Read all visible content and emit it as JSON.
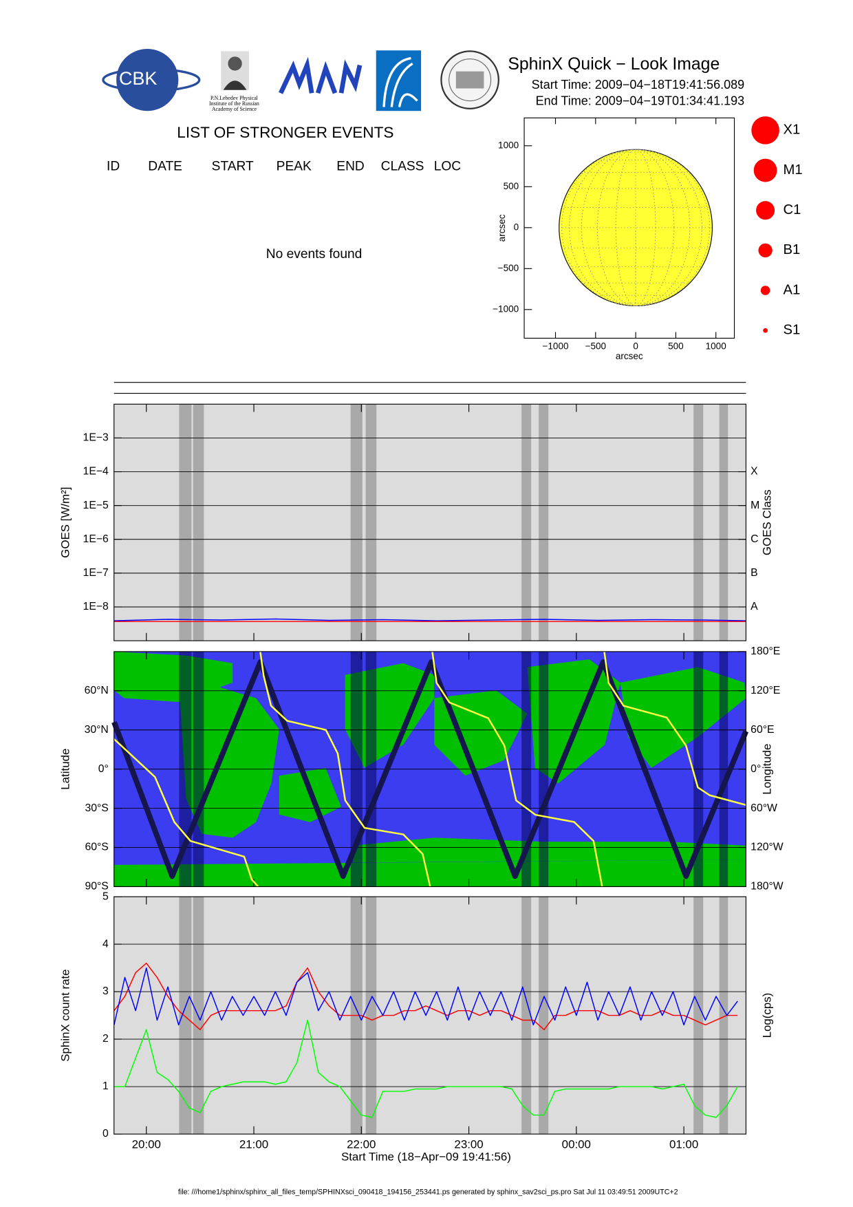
{
  "header": {
    "title": "SphinX Quick − Look Image",
    "start_time": "Start Time: 2009−04−18T19:41:56.089",
    "end_time": "End Time: 2009−04−19T01:34:41.193",
    "logos": {
      "cbk": "CBK",
      "lebedev": [
        "P.N.Lebedev Physical",
        "Institute of the Russian",
        "Academy of Science"
      ]
    }
  },
  "events": {
    "title": "LIST OF STRONGER EVENTS",
    "columns": [
      "ID",
      "DATE",
      "START",
      "PEAK",
      "END",
      "CLASS",
      "LOC"
    ],
    "message": "No events found"
  },
  "flare_legend": {
    "classes": [
      "X1",
      "M1",
      "C1",
      "B1",
      "A1",
      "S1"
    ],
    "color": "#ff0000"
  },
  "shaded_intervals": [
    [
      20.305,
      20.42
    ],
    [
      20.435,
      20.535
    ],
    [
      21.9,
      22.01
    ],
    [
      22.04,
      22.14
    ],
    [
      23.49,
      23.58
    ],
    [
      23.65,
      23.74
    ],
    [
      25.09,
      25.18
    ],
    [
      25.33,
      25.41
    ]
  ],
  "footer": "file: ///home1/sphinx/sphinx_all_files_temp/SPHINXsci_090418_194156_253441.ps generated by sphinx_sav2sci_ps.pro Sat Jul 11 03:49:51 2009UTC+2",
  "chart_data": [
    {
      "type": "disk",
      "xlabel": "arcsec",
      "ylabel": "arcsec",
      "xlim": [
        -1390,
        1230
      ],
      "ylim": [
        -1350,
        1340
      ],
      "radius": 955,
      "color": "#ffff33",
      "grid": true,
      "xticks": [
        {
          "value": -1000,
          "label": "−1000"
        },
        {
          "value": -500,
          "label": "−500"
        },
        0,
        500,
        1000
      ],
      "yticks": [
        {
          "value": -1000,
          "label": "−1000"
        },
        {
          "value": -500,
          "label": "−500"
        },
        0,
        500,
        1000
      ]
    },
    {
      "type": "line",
      "ylabel": "GOES [W/m²]",
      "y2label": "GOES Class",
      "log": true,
      "grid": true,
      "band_color": "#a0a0a0",
      "background": "#dcdcdc",
      "xlim": [
        19.699,
        25.578
      ],
      "ylim": [
        1e-09,
        0.01
      ],
      "y2lim": [
        1e-09,
        0.01
      ],
      "yticks": [
        {
          "value": 1e-08,
          "label": "1E−8"
        },
        {
          "value": 1e-07,
          "label": "1E−7"
        },
        {
          "value": 1e-06,
          "label": "1E−6"
        },
        {
          "value": 1e-05,
          "label": "1E−5"
        },
        {
          "value": 0.0001,
          "label": "1E−4"
        },
        {
          "value": 0.001,
          "label": "1E−3"
        }
      ],
      "y2ticks": [
        {
          "value": 1e-08,
          "label": "A"
        },
        {
          "value": 1e-07,
          "label": "B"
        },
        {
          "value": 1e-06,
          "label": "C"
        },
        {
          "value": 1e-05,
          "label": "M"
        },
        {
          "value": 0.0001,
          "label": "X"
        }
      ],
      "x": [
        19.7,
        20.2,
        20.7,
        21.2,
        21.7,
        22.2,
        22.7,
        23.2,
        23.7,
        24.2,
        24.7,
        25.2,
        25.578
      ],
      "series": [
        {
          "color": "#0000ff",
          "values": [
            3.9e-09,
            4.3e-09,
            4.1e-09,
            4.4e-09,
            4e-09,
            4.2e-09,
            3.9e-09,
            4.1e-09,
            4.3e-09,
            4e-09,
            4.2e-09,
            4.1e-09,
            3.9e-09
          ]
        },
        {
          "color": "#ff0000",
          "values": [
            3.7e-09,
            3.7e-09,
            3.7e-09,
            3.7e-09,
            3.7e-09,
            3.7e-09,
            3.7e-09,
            3.7e-09,
            3.7e-09,
            3.7e-09,
            3.7e-09,
            3.7e-09,
            3.7e-09
          ]
        }
      ]
    },
    {
      "type": "map",
      "ylabel": "Latitude",
      "y2label": "Longitude",
      "grid": true,
      "band_color": "#000050",
      "background": "#3c3cf0",
      "land_color": "#00c000",
      "xlim": [
        19.699,
        25.578
      ],
      "ylim": [
        -90,
        90
      ],
      "y2lim": [
        -180,
        180
      ],
      "yticks": [
        {
          "value": -90,
          "label": "90°S"
        },
        {
          "value": -60,
          "label": "60°S"
        },
        {
          "value": -30,
          "label": "30°S"
        },
        {
          "value": 0,
          "label": "0°"
        },
        {
          "value": 30,
          "label": "30°N"
        },
        {
          "value": 60,
          "label": "60°N"
        }
      ],
      "y2ticks": [
        {
          "value": -180,
          "label": "180°W"
        },
        {
          "value": -120,
          "label": "120°W"
        },
        {
          "value": -60,
          "label": "60°W"
        },
        {
          "value": 0,
          "label": "0°"
        },
        {
          "value": 60,
          "label": "60°E"
        },
        {
          "value": 120,
          "label": "120°E"
        },
        {
          "value": 180,
          "label": "180°E"
        }
      ],
      "series": [
        {
          "color": "#16164e",
          "x": [
            19.7,
            20.24,
            21.06,
            21.83,
            22.65,
            23.43,
            24.25,
            25.02,
            25.578
          ],
          "values": [
            36,
            -82,
            82,
            -82,
            82,
            -82,
            82,
            -82,
            29
          ]
        },
        {
          "color": "#ffff40",
          "axis": "y2",
          "x": [
            19.7,
            20.08,
            20.26,
            20.41,
            20.66,
            20.91,
            20.98,
            21.04,
            21.05,
            21.06,
            21.09,
            21.16,
            21.31,
            21.67,
            21.78,
            21.85,
            22.03,
            22.39,
            22.57,
            22.64,
            22.65,
            22.66,
            22.7,
            22.82,
            23.18,
            23.33,
            23.44,
            23.62,
            23.98,
            24.16,
            24.24,
            24.25,
            24.26,
            24.3,
            24.44,
            24.84,
            25.02,
            25.13,
            25.24,
            25.578
          ],
          "values": [
            46,
            -12,
            -81,
            -110,
            -122,
            -134,
            -169,
            -180,
            null,
            180,
            144,
            97,
            74,
            60,
            24,
            -48,
            -90,
            -100,
            -130,
            -180,
            null,
            180,
            132,
            102,
            78,
            36,
            -48,
            -70,
            -81,
            -110,
            -180,
            null,
            180,
            132,
            97,
            79,
            36,
            -28,
            -40,
            -55
          ]
        }
      ]
    },
    {
      "type": "line",
      "ylabel": "SphinX count rate",
      "y2label": "Log(cps)",
      "xlabel": "Start Time (18−Apr−09 19:41:56)",
      "grid": true,
      "band_color": "#a0a0a0",
      "background": "#dcdcdc",
      "xlim": [
        19.699,
        25.578
      ],
      "ylim": [
        0,
        5
      ],
      "yticks": [
        0,
        1,
        2,
        3,
        4,
        5
      ],
      "xticks": [
        {
          "value": 20,
          "label": "20:00"
        },
        {
          "value": 21,
          "label": "21:00"
        },
        {
          "value": 22,
          "label": "22:00"
        },
        {
          "value": 23,
          "label": "23:00"
        },
        {
          "value": 24,
          "label": "00:00"
        },
        {
          "value": 25,
          "label": "01:00"
        }
      ],
      "x": [
        19.7,
        19.8,
        19.9,
        20.0,
        20.1,
        20.2,
        20.3,
        20.4,
        20.5,
        20.6,
        20.7,
        20.8,
        20.9,
        21.0,
        21.1,
        21.2,
        21.3,
        21.4,
        21.5,
        21.6,
        21.7,
        21.8,
        21.9,
        22.0,
        22.1,
        22.2,
        22.3,
        22.4,
        22.5,
        22.6,
        22.7,
        22.8,
        22.9,
        23.0,
        23.1,
        23.2,
        23.3,
        23.4,
        23.5,
        23.6,
        23.7,
        23.8,
        23.9,
        24.0,
        24.1,
        24.2,
        24.3,
        24.4,
        24.5,
        24.6,
        24.7,
        24.8,
        24.9,
        25.0,
        25.1,
        25.2,
        25.3,
        25.4,
        25.5
      ],
      "series": [
        {
          "color": "#00ff00",
          "values": [
            1.0,
            1.0,
            1.6,
            2.2,
            1.3,
            1.15,
            0.9,
            0.55,
            0.45,
            0.9,
            1.0,
            1.05,
            1.1,
            1.1,
            1.1,
            1.05,
            1.1,
            1.5,
            2.4,
            1.3,
            1.1,
            1.0,
            0.7,
            0.4,
            0.35,
            0.9,
            0.9,
            0.9,
            0.95,
            0.95,
            0.95,
            1.0,
            1.0,
            1.0,
            1.0,
            1.0,
            1.0,
            0.95,
            0.6,
            0.4,
            0.4,
            0.9,
            0.95,
            0.95,
            0.95,
            0.95,
            0.95,
            1.0,
            1.0,
            1.0,
            1.0,
            0.95,
            1.0,
            1.05,
            0.6,
            0.4,
            0.35,
            0.6,
            1.0
          ]
        },
        {
          "color": "#ff0000",
          "values": [
            2.6,
            2.9,
            3.4,
            3.6,
            3.3,
            2.9,
            2.6,
            2.4,
            2.2,
            2.5,
            2.6,
            2.6,
            2.6,
            2.6,
            2.6,
            2.6,
            2.7,
            3.2,
            3.5,
            3.0,
            2.7,
            2.5,
            2.5,
            2.5,
            2.4,
            2.5,
            2.5,
            2.6,
            2.6,
            2.7,
            2.6,
            2.5,
            2.6,
            2.6,
            2.5,
            2.6,
            2.6,
            2.5,
            2.4,
            2.4,
            2.2,
            2.5,
            2.5,
            2.6,
            2.6,
            2.6,
            2.5,
            2.5,
            2.6,
            2.5,
            2.5,
            2.6,
            2.5,
            2.5,
            2.4,
            2.3,
            2.4,
            2.5,
            2.5
          ]
        },
        {
          "color": "#0000ff",
          "values": [
            2.3,
            3.3,
            2.6,
            3.5,
            2.4,
            3.1,
            2.3,
            2.9,
            2.4,
            3.0,
            2.4,
            2.9,
            2.5,
            2.9,
            2.5,
            3.0,
            2.5,
            3.2,
            3.4,
            2.6,
            3.0,
            2.4,
            2.9,
            2.4,
            2.9,
            2.5,
            3.0,
            2.4,
            3.0,
            2.5,
            3.0,
            2.4,
            3.1,
            2.4,
            3.0,
            2.5,
            3.0,
            2.4,
            3.1,
            2.3,
            2.9,
            2.4,
            3.1,
            2.5,
            3.2,
            2.4,
            3.0,
            2.5,
            3.1,
            2.4,
            3.0,
            2.5,
            3.0,
            2.3,
            2.9,
            2.4,
            2.9,
            2.5,
            2.8
          ]
        }
      ]
    }
  ]
}
